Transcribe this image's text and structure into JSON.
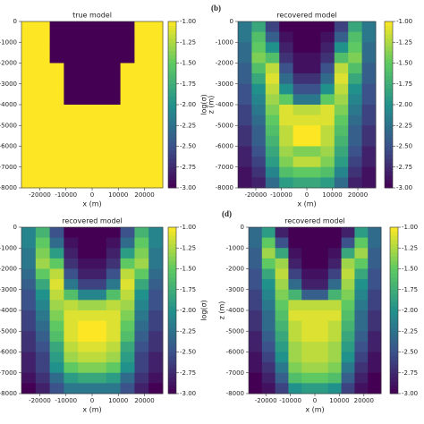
{
  "chart_data": [
    {
      "type": "heatmap",
      "title": "true model",
      "xlabel": "x (m)",
      "colorbar_label": "log(σ)",
      "cmap": "viridis",
      "xlim": [
        -27000,
        27000
      ],
      "ylim": [
        -8000,
        0
      ],
      "clim": [
        -3,
        -1
      ],
      "xticks": [
        -20000,
        -10000,
        0,
        10000,
        20000
      ],
      "yticks": [
        0,
        -1000,
        -2000,
        -3000,
        -4000,
        -5000,
        -6000,
        -7000,
        -8000
      ],
      "cticks": [
        {
          "value": -1,
          "label": "-1.00"
        },
        {
          "value": -1.25,
          "label": "-1.25"
        },
        {
          "value": -1.5,
          "label": "-1.50"
        },
        {
          "value": -1.75,
          "label": "-1.75"
        },
        {
          "value": -2,
          "label": "-2.00"
        },
        {
          "value": -2.25,
          "label": "-2.25"
        },
        {
          "value": -2.5,
          "label": "-2.50"
        },
        {
          "value": -2.75,
          "label": "-2.75"
        },
        {
          "value": -3,
          "label": "-3.00"
        }
      ],
      "z": [
        [
          -1,
          -1,
          -3,
          -3,
          -3,
          -3,
          -3,
          -3,
          -1,
          -1
        ],
        [
          -1,
          -1,
          -3,
          -3,
          -3,
          -3,
          -3,
          -3,
          -1,
          -1
        ],
        [
          -1,
          -1,
          -3,
          -3,
          -3,
          -3,
          -3,
          -3,
          -1,
          -1
        ],
        [
          -1,
          -1,
          -3,
          -3,
          -3,
          -3,
          -3,
          -3,
          -1,
          -1
        ],
        [
          -1,
          -1,
          -1,
          -3,
          -3,
          -3,
          -3,
          -1,
          -1,
          -1
        ],
        [
          -1,
          -1,
          -1,
          -3,
          -3,
          -3,
          -3,
          -1,
          -1,
          -1
        ],
        [
          -1,
          -1,
          -1,
          -3,
          -3,
          -3,
          -3,
          -1,
          -1,
          -1
        ],
        [
          -1,
          -1,
          -1,
          -3,
          -3,
          -3,
          -3,
          -1,
          -1,
          -1
        ],
        [
          -1,
          -1,
          -1,
          -1,
          -1,
          -1,
          -1,
          -1,
          -1,
          -1
        ],
        [
          -1,
          -1,
          -1,
          -1,
          -1,
          -1,
          -1,
          -1,
          -1,
          -1
        ],
        [
          -1,
          -1,
          -1,
          -1,
          -1,
          -1,
          -1,
          -1,
          -1,
          -1
        ],
        [
          -1,
          -1,
          -1,
          -1,
          -1,
          -1,
          -1,
          -1,
          -1,
          -1
        ],
        [
          -1,
          -1,
          -1,
          -1,
          -1,
          -1,
          -1,
          -1,
          -1,
          -1
        ],
        [
          -1,
          -1,
          -1,
          -1,
          -1,
          -1,
          -1,
          -1,
          -1,
          -1
        ],
        [
          -1,
          -1,
          -1,
          -1,
          -1,
          -1,
          -1,
          -1,
          -1,
          -1
        ],
        [
          -1,
          -1,
          -1,
          -1,
          -1,
          -1,
          -1,
          -1,
          -1,
          -1
        ]
      ]
    },
    {
      "type": "heatmap",
      "panel_label": "(b)",
      "title": "recovered model",
      "xlabel": "x (m)",
      "ylabel": "z (m)",
      "cmap": "viridis",
      "xlim": [
        -27000,
        27000
      ],
      "ylim": [
        -8000,
        0
      ],
      "clim": [
        -3,
        -1
      ],
      "xticks": [
        -20000,
        -10000,
        0,
        10000,
        20000
      ],
      "yticks": [
        0,
        -1000,
        -2000,
        -3000,
        -4000,
        -5000,
        -6000,
        -7000,
        -8000
      ],
      "cticks": [
        {
          "value": -1,
          "label": "-1.00"
        },
        {
          "value": -1.25,
          "label": "-1.25"
        },
        {
          "value": -1.5,
          "label": "-1.50"
        },
        {
          "value": -1.75,
          "label": "-1.75"
        },
        {
          "value": -2,
          "label": "-2.00"
        },
        {
          "value": -2.25,
          "label": "-2.25"
        },
        {
          "value": -2.5,
          "label": "-2.50"
        },
        {
          "value": -2.75,
          "label": "-2.75"
        },
        {
          "value": -3,
          "label": "-3.00"
        }
      ],
      "z": [
        [
          -2.2,
          -1.8,
          -2.6,
          -3,
          -3,
          -3,
          -3,
          -2.6,
          -1.8,
          -2.2
        ],
        [
          -2.2,
          -1.6,
          -2.4,
          -2.9,
          -3,
          -3,
          -2.9,
          -2.4,
          -1.6,
          -2.2
        ],
        [
          -2.3,
          -1.5,
          -2,
          -2.8,
          -3,
          -3,
          -2.8,
          -2,
          -1.5,
          -2.3
        ],
        [
          -2.3,
          -1.4,
          -1.6,
          -2.7,
          -2.9,
          -2.9,
          -2.7,
          -1.6,
          -1.4,
          -2.3
        ],
        [
          -2.4,
          -1.6,
          -1.2,
          -2.5,
          -2.9,
          -2.9,
          -2.5,
          -1.2,
          -1.6,
          -2.4
        ],
        [
          -2.4,
          -1.8,
          -1.1,
          -2.3,
          -2.7,
          -2.7,
          -2.3,
          -1.1,
          -1.8,
          -2.4
        ],
        [
          -2.5,
          -2,
          -1.2,
          -2,
          -2.5,
          -2.5,
          -2,
          -1.2,
          -2,
          -2.5
        ],
        [
          -2.5,
          -2.1,
          -1.3,
          -1.5,
          -2.2,
          -2.2,
          -1.5,
          -1.3,
          -2.1,
          -2.5
        ],
        [
          -2.6,
          -2.2,
          -1.4,
          -1.1,
          -1.2,
          -1.2,
          -1.1,
          -1.4,
          -2.2,
          -2.6
        ],
        [
          -2.6,
          -2.3,
          -1.5,
          -1.1,
          -1.1,
          -1.1,
          -1.1,
          -1.5,
          -2.3,
          -2.6
        ],
        [
          -2.7,
          -2.4,
          -1.6,
          -1.2,
          -1,
          -1,
          -1.2,
          -1.6,
          -2.4,
          -2.7
        ],
        [
          -2.7,
          -2.4,
          -1.7,
          -1.2,
          -1,
          -1,
          -1.2,
          -1.7,
          -2.4,
          -2.7
        ],
        [
          -2.8,
          -2.5,
          -1.8,
          -1.3,
          -1.4,
          -1.4,
          -1.3,
          -1.8,
          -2.5,
          -2.8
        ],
        [
          -2.8,
          -2.6,
          -1.9,
          -1.4,
          -1.2,
          -1.2,
          -1.4,
          -1.9,
          -2.6,
          -2.8
        ],
        [
          -2.9,
          -2.7,
          -2.1,
          -1.6,
          -1.5,
          -1.5,
          -1.6,
          -2.1,
          -2.7,
          -2.9
        ],
        [
          -2.9,
          -2.8,
          -2.3,
          -1.9,
          -1.8,
          -1.8,
          -1.9,
          -2.3,
          -2.8,
          -2.9
        ]
      ]
    },
    {
      "type": "heatmap",
      "title": "recovered model",
      "xlabel": "x (m)",
      "colorbar_label": "log(σ)",
      "cmap": "viridis",
      "xlim": [
        -27000,
        27000
      ],
      "ylim": [
        -8000,
        0
      ],
      "clim": [
        -3,
        -1
      ],
      "xticks": [
        -20000,
        -10000,
        0,
        10000,
        20000
      ],
      "yticks": [
        0,
        -1000,
        -2000,
        -3000,
        -4000,
        -5000,
        -6000,
        -7000,
        -8000
      ],
      "cticks": [
        {
          "value": -1,
          "label": "-1.00"
        },
        {
          "value": -1.25,
          "label": "-1.25"
        },
        {
          "value": -1.5,
          "label": "-1.50"
        },
        {
          "value": -1.75,
          "label": "-1.75"
        },
        {
          "value": -2,
          "label": "-2.00"
        },
        {
          "value": -2.25,
          "label": "-2.25"
        },
        {
          "value": -2.5,
          "label": "-2.50"
        },
        {
          "value": -2.75,
          "label": "-2.75"
        },
        {
          "value": -3,
          "label": "-3.00"
        }
      ],
      "z": [
        [
          -2.1,
          -1.7,
          -2.5,
          -3,
          -3,
          -3,
          -3,
          -2.5,
          -1.7,
          -2.1
        ],
        [
          -2.1,
          -1.5,
          -2.3,
          -2.9,
          -3,
          -3,
          -2.9,
          -2.3,
          -1.5,
          -2.1
        ],
        [
          -2.2,
          -1.4,
          -1.9,
          -2.8,
          -3,
          -3,
          -2.8,
          -1.9,
          -1.4,
          -2.2
        ],
        [
          -2.2,
          -1.3,
          -1.5,
          -2.7,
          -2.9,
          -2.9,
          -2.7,
          -1.5,
          -1.3,
          -2.2
        ],
        [
          -2.3,
          -1.5,
          -1.2,
          -2.5,
          -2.8,
          -2.8,
          -2.5,
          -1.2,
          -1.5,
          -2.3
        ],
        [
          -2.4,
          -1.8,
          -1.1,
          -2.2,
          -2.6,
          -2.6,
          -2.2,
          -1.1,
          -1.8,
          -2.4
        ],
        [
          -2.5,
          -2,
          -1.2,
          -1.6,
          -2.1,
          -2.1,
          -1.6,
          -1.2,
          -2,
          -2.5
        ],
        [
          -2.5,
          -2.1,
          -1.3,
          -1.2,
          -1.3,
          -1.3,
          -1.2,
          -1.3,
          -2.1,
          -2.5
        ],
        [
          -2.6,
          -2.2,
          -1.4,
          -1.1,
          -1.1,
          -1.1,
          -1.1,
          -1.4,
          -2.2,
          -2.6
        ],
        [
          -2.6,
          -2.3,
          -1.5,
          -1.1,
          -1,
          -1,
          -1.1,
          -1.5,
          -2.3,
          -2.6
        ],
        [
          -2.7,
          -2.4,
          -1.6,
          -1.1,
          -1,
          -1,
          -1.1,
          -1.6,
          -2.4,
          -2.7
        ],
        [
          -2.7,
          -2.5,
          -1.8,
          -1.2,
          -1.1,
          -1.1,
          -1.2,
          -1.8,
          -2.5,
          -2.7
        ],
        [
          -2.8,
          -2.6,
          -1.9,
          -1.3,
          -1.2,
          -1.2,
          -1.3,
          -1.9,
          -2.6,
          -2.8
        ],
        [
          -2.8,
          -2.6,
          -2,
          -1.5,
          -1.4,
          -1.4,
          -1.5,
          -2,
          -2.6,
          -2.8
        ],
        [
          -2.9,
          -2.7,
          -2.3,
          -1.9,
          -1.8,
          -1.8,
          -1.9,
          -2.3,
          -2.7,
          -2.9
        ],
        [
          -3,
          -2.8,
          -2.5,
          -2.2,
          -2.2,
          -2.2,
          -2.2,
          -2.5,
          -2.8,
          -3
        ]
      ]
    },
    {
      "type": "heatmap",
      "panel_label": "(d)",
      "title": "recovered model",
      "xlabel": "x (m)",
      "ylabel": "z (m)",
      "cmap": "viridis",
      "xlim": [
        -27000,
        27000
      ],
      "ylim": [
        -8000,
        0
      ],
      "clim": [
        -3,
        -1
      ],
      "xticks": [
        -20000,
        -10000,
        0,
        10000,
        20000
      ],
      "yticks": [
        0,
        -1000,
        -2000,
        -3000,
        -4000,
        -5000,
        -6000,
        -7000,
        -8000
      ],
      "cticks": [
        {
          "value": -1,
          "label": "-1.00"
        },
        {
          "value": -1.25,
          "label": "-1.25"
        },
        {
          "value": -1.5,
          "label": "-1.50"
        },
        {
          "value": -1.75,
          "label": "-1.75"
        },
        {
          "value": -2,
          "label": "-2.00"
        },
        {
          "value": -2.25,
          "label": "-2.25"
        },
        {
          "value": -2.5,
          "label": "-2.50"
        },
        {
          "value": -2.75,
          "label": "-2.75"
        },
        {
          "value": -3,
          "label": "-3.00"
        }
      ],
      "z": [
        [
          -2.3,
          -1.9,
          -2.8,
          -3,
          -3,
          -3,
          -3,
          -2.8,
          -1.9,
          -2.3
        ],
        [
          -2.3,
          -1.5,
          -2.5,
          -3,
          -3,
          -3,
          -3,
          -2.5,
          -1.5,
          -2.3
        ],
        [
          -2.4,
          -1.3,
          -1.8,
          -2.9,
          -3,
          -3,
          -2.9,
          -1.8,
          -1.3,
          -2.4
        ],
        [
          -2.4,
          -1.5,
          -1.3,
          -2.8,
          -3,
          -3,
          -2.8,
          -1.3,
          -1.5,
          -2.4
        ],
        [
          -2.5,
          -1.8,
          -1.2,
          -2.6,
          -2.9,
          -2.9,
          -2.6,
          -1.2,
          -1.8,
          -2.5
        ],
        [
          -2.5,
          -2,
          -1.3,
          -2.3,
          -2.8,
          -2.8,
          -2.3,
          -1.3,
          -2,
          -2.5
        ],
        [
          -2.6,
          -2.1,
          -1.4,
          -1.7,
          -2.4,
          -2.4,
          -1.7,
          -1.4,
          -2.1,
          -2.6
        ],
        [
          -2.6,
          -2.2,
          -1.5,
          -1.2,
          -1.2,
          -1.2,
          -1.2,
          -1.5,
          -2.2,
          -2.6
        ],
        [
          -2.7,
          -2.3,
          -1.6,
          -1.1,
          -1.1,
          -1.1,
          -1.1,
          -1.6,
          -2.3,
          -2.7
        ],
        [
          -2.7,
          -2.3,
          -1.7,
          -1.2,
          -1.1,
          -1.1,
          -1.2,
          -1.7,
          -2.3,
          -2.7
        ],
        [
          -2.8,
          -2.4,
          -1.8,
          -1.2,
          -1.1,
          -1.1,
          -1.2,
          -1.8,
          -2.4,
          -2.8
        ],
        [
          -2.8,
          -2.5,
          -1.9,
          -1.3,
          -1.2,
          -1.2,
          -1.3,
          -1.9,
          -2.5,
          -2.8
        ],
        [
          -2.9,
          -2.6,
          -2,
          -1.3,
          -1.2,
          -1.2,
          -1.3,
          -2,
          -2.6,
          -2.9
        ],
        [
          -2.9,
          -2.7,
          -2.2,
          -1.4,
          -1.3,
          -1.3,
          -1.4,
          -2.2,
          -2.7,
          -2.9
        ],
        [
          -3,
          -2.8,
          -2.4,
          -1.6,
          -1.5,
          -1.5,
          -1.6,
          -2.4,
          -2.8,
          -3
        ],
        [
          -3,
          -2.9,
          -2.6,
          -2,
          -1.9,
          -1.9,
          -2,
          -2.6,
          -2.9,
          -3
        ]
      ]
    }
  ]
}
